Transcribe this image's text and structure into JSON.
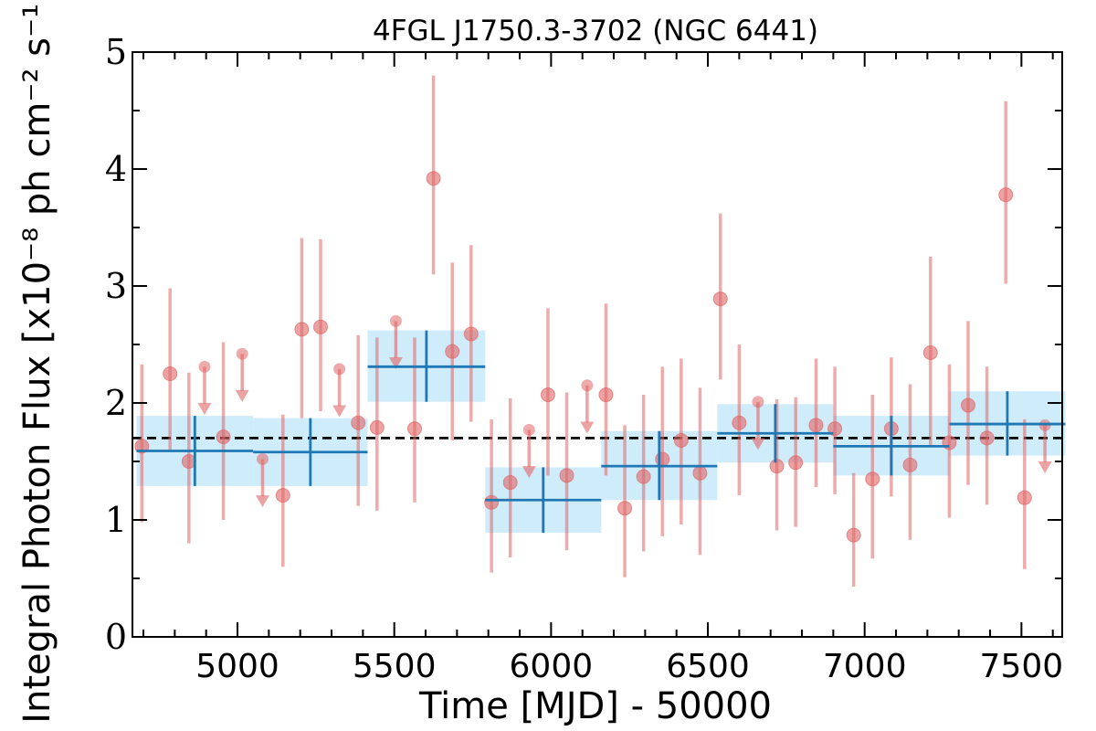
{
  "chart_data": {
    "type": "scatter",
    "title": "4FGL J1750.3-3702 (NGC 6441)",
    "xlabel": "Time [MJD] - 50000",
    "ylabel": "Integral Photon Flux [x10⁻⁸ ph cm⁻² s⁻¹]",
    "xlim": [
      4665,
      7630
    ],
    "ylim": [
      0,
      5
    ],
    "xticks": [
      "5000",
      "5500",
      "6000",
      "6500",
      "7000",
      "7500"
    ],
    "yticks": [
      "0",
      "1",
      "2",
      "3",
      "4",
      "5"
    ],
    "grid": false,
    "average_flux": 1.7,
    "colors": {
      "points": "#e06666",
      "bins_line": "#1f77b4",
      "bins_band": "#a8ddf7",
      "average_line": "#000000"
    },
    "series": [
      {
        "kind": "measurements",
        "points": [
          {
            "x": 4695,
            "y": 1.63,
            "lo": 0.98,
            "hi": 2.33
          },
          {
            "x": 4785,
            "y": 2.25,
            "lo": 1.6,
            "hi": 2.98
          },
          {
            "x": 4845,
            "y": 1.5,
            "lo": 0.8,
            "hi": 2.26
          },
          {
            "x": 4955,
            "y": 1.71,
            "lo": 1.0,
            "hi": 2.52
          },
          {
            "x": 5145,
            "y": 1.21,
            "lo": 0.6,
            "hi": 1.9
          },
          {
            "x": 5205,
            "y": 2.63,
            "lo": 1.87,
            "hi": 3.41
          },
          {
            "x": 5265,
            "y": 2.65,
            "lo": 1.93,
            "hi": 3.4
          },
          {
            "x": 5385,
            "y": 1.83,
            "lo": 1.12,
            "hi": 2.58
          },
          {
            "x": 5445,
            "y": 1.79,
            "lo": 1.08,
            "hi": 2.56
          },
          {
            "x": 5565,
            "y": 1.78,
            "lo": 1.15,
            "hi": 2.56
          },
          {
            "x": 5625,
            "y": 3.92,
            "lo": 3.1,
            "hi": 4.8
          },
          {
            "x": 5685,
            "y": 2.44,
            "lo": 1.68,
            "hi": 3.2
          },
          {
            "x": 5745,
            "y": 2.59,
            "lo": 1.84,
            "hi": 3.35
          },
          {
            "x": 5810,
            "y": 1.15,
            "lo": 0.55,
            "hi": 1.86
          },
          {
            "x": 5870,
            "y": 1.32,
            "lo": 0.68,
            "hi": 2.04
          },
          {
            "x": 5990,
            "y": 2.07,
            "lo": 1.38,
            "hi": 2.81
          },
          {
            "x": 6050,
            "y": 1.38,
            "lo": 0.74,
            "hi": 2.09
          },
          {
            "x": 6175,
            "y": 2.07,
            "lo": 1.38,
            "hi": 2.85
          },
          {
            "x": 6235,
            "y": 1.1,
            "lo": 0.51,
            "hi": 1.81
          },
          {
            "x": 6295,
            "y": 1.37,
            "lo": 0.73,
            "hi": 2.07
          },
          {
            "x": 6355,
            "y": 1.52,
            "lo": 0.86,
            "hi": 2.31
          },
          {
            "x": 6415,
            "y": 1.68,
            "lo": 0.96,
            "hi": 2.38
          },
          {
            "x": 6475,
            "y": 1.4,
            "lo": 0.7,
            "hi": 2.13
          },
          {
            "x": 6540,
            "y": 2.89,
            "lo": 2.2,
            "hi": 3.62
          },
          {
            "x": 6600,
            "y": 1.83,
            "lo": 1.21,
            "hi": 2.5
          },
          {
            "x": 6720,
            "y": 1.46,
            "lo": 0.91,
            "hi": 2.03
          },
          {
            "x": 6780,
            "y": 1.49,
            "lo": 0.94,
            "hi": 2.05
          },
          {
            "x": 6845,
            "y": 1.81,
            "lo": 1.28,
            "hi": 2.38
          },
          {
            "x": 6905,
            "y": 1.78,
            "lo": 1.22,
            "hi": 2.31
          },
          {
            "x": 6965,
            "y": 0.87,
            "lo": 0.43,
            "hi": 1.4
          },
          {
            "x": 7025,
            "y": 1.35,
            "lo": 0.67,
            "hi": 2.07
          },
          {
            "x": 7085,
            "y": 1.78,
            "lo": 1.2,
            "hi": 2.39
          },
          {
            "x": 7145,
            "y": 1.47,
            "lo": 0.83,
            "hi": 2.16
          },
          {
            "x": 7210,
            "y": 2.43,
            "lo": 1.64,
            "hi": 3.25
          },
          {
            "x": 7270,
            "y": 1.66,
            "lo": 1.02,
            "hi": 2.33
          },
          {
            "x": 7330,
            "y": 1.98,
            "lo": 1.3,
            "hi": 2.7
          },
          {
            "x": 7390,
            "y": 1.7,
            "lo": 1.13,
            "hi": 2.31
          },
          {
            "x": 7450,
            "y": 3.78,
            "lo": 3.02,
            "hi": 4.58
          },
          {
            "x": 7510,
            "y": 1.19,
            "lo": 0.58,
            "hi": 1.86
          }
        ]
      },
      {
        "kind": "upper_limits",
        "points": [
          {
            "x": 4895,
            "y": 2.31,
            "tip": 1.93
          },
          {
            "x": 5015,
            "y": 2.42,
            "tip": 2.04
          },
          {
            "x": 5080,
            "y": 1.52,
            "tip": 1.14
          },
          {
            "x": 5325,
            "y": 2.29,
            "tip": 1.91
          },
          {
            "x": 5505,
            "y": 2.7,
            "tip": 2.32
          },
          {
            "x": 5930,
            "y": 1.77,
            "tip": 1.39
          },
          {
            "x": 6115,
            "y": 2.15,
            "tip": 1.77
          },
          {
            "x": 6660,
            "y": 2.01,
            "tip": 1.63
          },
          {
            "x": 7575,
            "y": 1.81,
            "tip": 1.43
          }
        ]
      },
      {
        "kind": "time_bins",
        "bins": [
          {
            "x0": 4678,
            "x1": 5050,
            "y": 1.59,
            "lo": 1.29,
            "hi": 1.89
          },
          {
            "x0": 5050,
            "x1": 5415,
            "y": 1.58,
            "lo": 1.29,
            "hi": 1.87
          },
          {
            "x0": 5415,
            "x1": 5790,
            "y": 2.31,
            "lo": 2.01,
            "hi": 2.62
          },
          {
            "x0": 5790,
            "x1": 6160,
            "y": 1.17,
            "lo": 0.89,
            "hi": 1.45
          },
          {
            "x0": 6160,
            "x1": 6530,
            "y": 1.46,
            "lo": 1.17,
            "hi": 1.76
          },
          {
            "x0": 6530,
            "x1": 6900,
            "y": 1.74,
            "lo": 1.49,
            "hi": 1.99
          },
          {
            "x0": 6900,
            "x1": 7270,
            "y": 1.63,
            "lo": 1.38,
            "hi": 1.89
          },
          {
            "x0": 7270,
            "x1": 7640,
            "y": 1.82,
            "lo": 1.55,
            "hi": 2.1
          }
        ]
      }
    ]
  }
}
